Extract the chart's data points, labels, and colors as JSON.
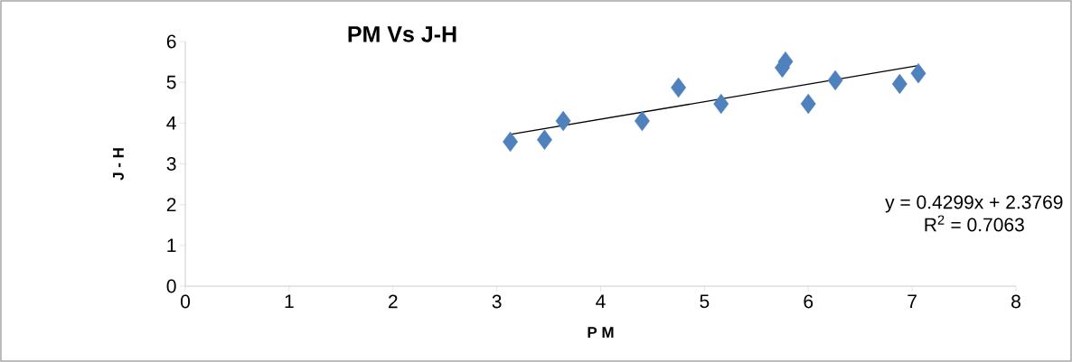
{
  "chart_data": {
    "type": "scatter",
    "title": "PM Vs J-H",
    "xlabel": "P M",
    "ylabel": "J - H",
    "xlim": [
      0,
      8
    ],
    "xticks": [
      0,
      1,
      2,
      3,
      4,
      5,
      6,
      7,
      8
    ],
    "ylim": [
      0,
      6
    ],
    "yticks": [
      0,
      1,
      2,
      3,
      4,
      5,
      6
    ],
    "marker": "diamond",
    "grid": false,
    "series": [
      {
        "color": "#4f81bd",
        "x": [
          3.13,
          3.46,
          3.64,
          4.4,
          4.75,
          5.16,
          5.75,
          5.78,
          6.0,
          6.26,
          6.88,
          7.06
        ],
        "values": [
          3.54,
          3.59,
          4.05,
          4.05,
          4.87,
          4.47,
          5.36,
          5.51,
          4.47,
          5.05,
          4.96,
          5.22
        ]
      },
      {
        "type": "line",
        "marker": "none",
        "color": "#000000",
        "x": [
          3.13,
          7.06
        ],
        "values": [
          3.72,
          5.41
        ]
      }
    ],
    "annotations": [
      "y = 0.4299x + 2.3769",
      "R$^{2}$ = 0.7063"
    ]
  }
}
